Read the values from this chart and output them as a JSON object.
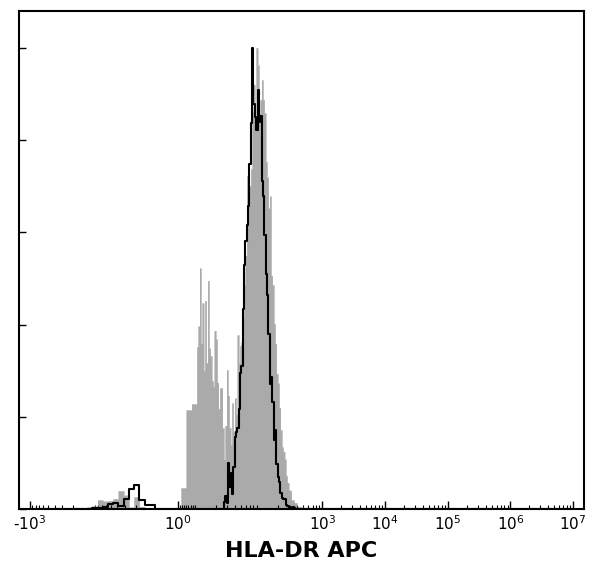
{
  "title": "",
  "xlabel": "HLA-DR APC",
  "ylabel": "",
  "fig_width": 6.0,
  "fig_height": 5.72,
  "dpi": 100,
  "bg_color": "#ffffff",
  "hist_fill_color": "#aaaaaa",
  "isotype_line_color": "#000000",
  "xlabel_fontsize": 16,
  "tick_labelsize": 11,
  "major_ticks": [
    -1000,
    1,
    1000,
    10000,
    100000,
    1000000,
    10000000
  ],
  "major_labels": [
    "-10$^3$",
    "10$^0$",
    "10$^3$",
    "10$^4$",
    "10$^5$",
    "10$^6$",
    "10$^7$"
  ],
  "xlim_min": -1500,
  "xlim_max": 15000000,
  "linthresh": 10,
  "linscale": 0.3,
  "seed": 42
}
